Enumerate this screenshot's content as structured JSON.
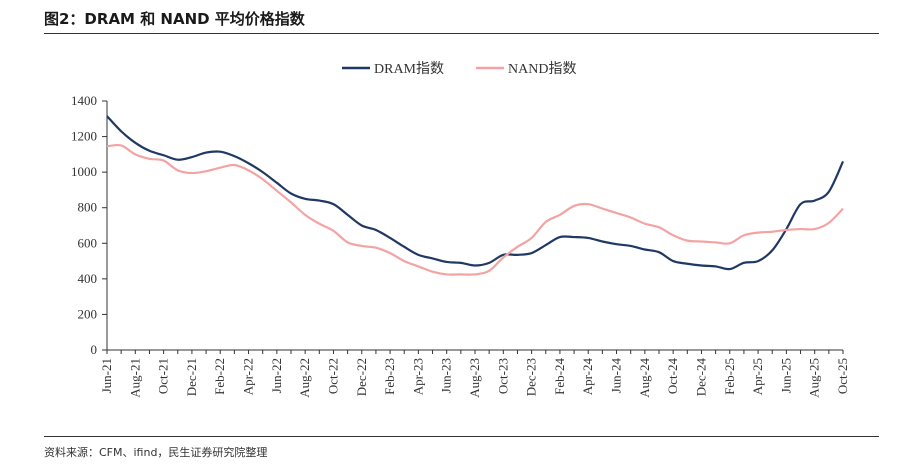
{
  "header": {
    "title": "图2：DRAM 和 NAND 平均价格指数"
  },
  "footer": {
    "source": "资料来源：CFM、ifind，民生证券研究院整理"
  },
  "chart_data": {
    "type": "line",
    "title": "图2：DRAM 和 NAND 平均价格指数",
    "xlabel": "",
    "ylabel": "",
    "ylim": [
      0,
      1400
    ],
    "yticks": [
      0,
      200,
      400,
      600,
      800,
      1000,
      1200,
      1400
    ],
    "xticks": [
      "Jun-21",
      "Aug-21",
      "Oct-21",
      "Dec-21",
      "Feb-22",
      "Apr-22",
      "Jun-22",
      "Aug-22",
      "Oct-22",
      "Dec-22",
      "Feb-23",
      "Apr-23",
      "Jun-23",
      "Aug-23",
      "Oct-23",
      "Dec-23",
      "Feb-24",
      "Apr-24",
      "Jun-24",
      "Aug-24",
      "Oct-24",
      "Dec-24",
      "Feb-25",
      "Apr-25",
      "Jun-25",
      "Aug-25",
      "Oct-25"
    ],
    "x": [
      "Jun-21",
      "Jul-21",
      "Aug-21",
      "Sep-21",
      "Oct-21",
      "Nov-21",
      "Dec-21",
      "Jan-22",
      "Feb-22",
      "Mar-22",
      "Apr-22",
      "May-22",
      "Jun-22",
      "Jul-22",
      "Aug-22",
      "Sep-22",
      "Oct-22",
      "Nov-22",
      "Dec-22",
      "Jan-23",
      "Feb-23",
      "Mar-23",
      "Apr-23",
      "May-23",
      "Jun-23",
      "Jul-23",
      "Aug-23",
      "Sep-23",
      "Oct-23",
      "Nov-23",
      "Dec-23",
      "Jan-24",
      "Feb-24",
      "Mar-24",
      "Apr-24",
      "May-24",
      "Jun-24",
      "Jul-24",
      "Aug-24",
      "Sep-24",
      "Oct-24",
      "Nov-24",
      "Dec-24",
      "Jan-25",
      "Feb-25",
      "Mar-25",
      "Apr-25",
      "May-25",
      "Jun-25",
      "Jul-25",
      "Aug-25",
      "Sep-25",
      "Oct-25"
    ],
    "legend_position": "top-center",
    "series": [
      {
        "name": "DRAM指数",
        "color": "#1f3864",
        "values": [
          1315,
          1230,
          1165,
          1120,
          1095,
          1070,
          1085,
          1110,
          1115,
          1090,
          1050,
          1000,
          940,
          880,
          850,
          840,
          820,
          760,
          700,
          675,
          630,
          580,
          535,
          515,
          495,
          490,
          475,
          490,
          535,
          535,
          545,
          590,
          635,
          635,
          630,
          610,
          595,
          585,
          565,
          550,
          500,
          485,
          475,
          470,
          455,
          490,
          500,
          560,
          680,
          820,
          840,
          890,
          1060
        ]
      },
      {
        "name": "NAND指数",
        "color": "#f4a3a3",
        "values": [
          1145,
          1150,
          1100,
          1075,
          1065,
          1010,
          995,
          1005,
          1025,
          1040,
          1010,
          960,
          895,
          830,
          760,
          710,
          670,
          605,
          585,
          575,
          545,
          500,
          470,
          440,
          425,
          425,
          425,
          445,
          520,
          580,
          630,
          720,
          760,
          810,
          820,
          795,
          770,
          745,
          710,
          690,
          645,
          615,
          610,
          605,
          600,
          645,
          660,
          665,
          675,
          680,
          680,
          715,
          795
        ]
      }
    ]
  }
}
